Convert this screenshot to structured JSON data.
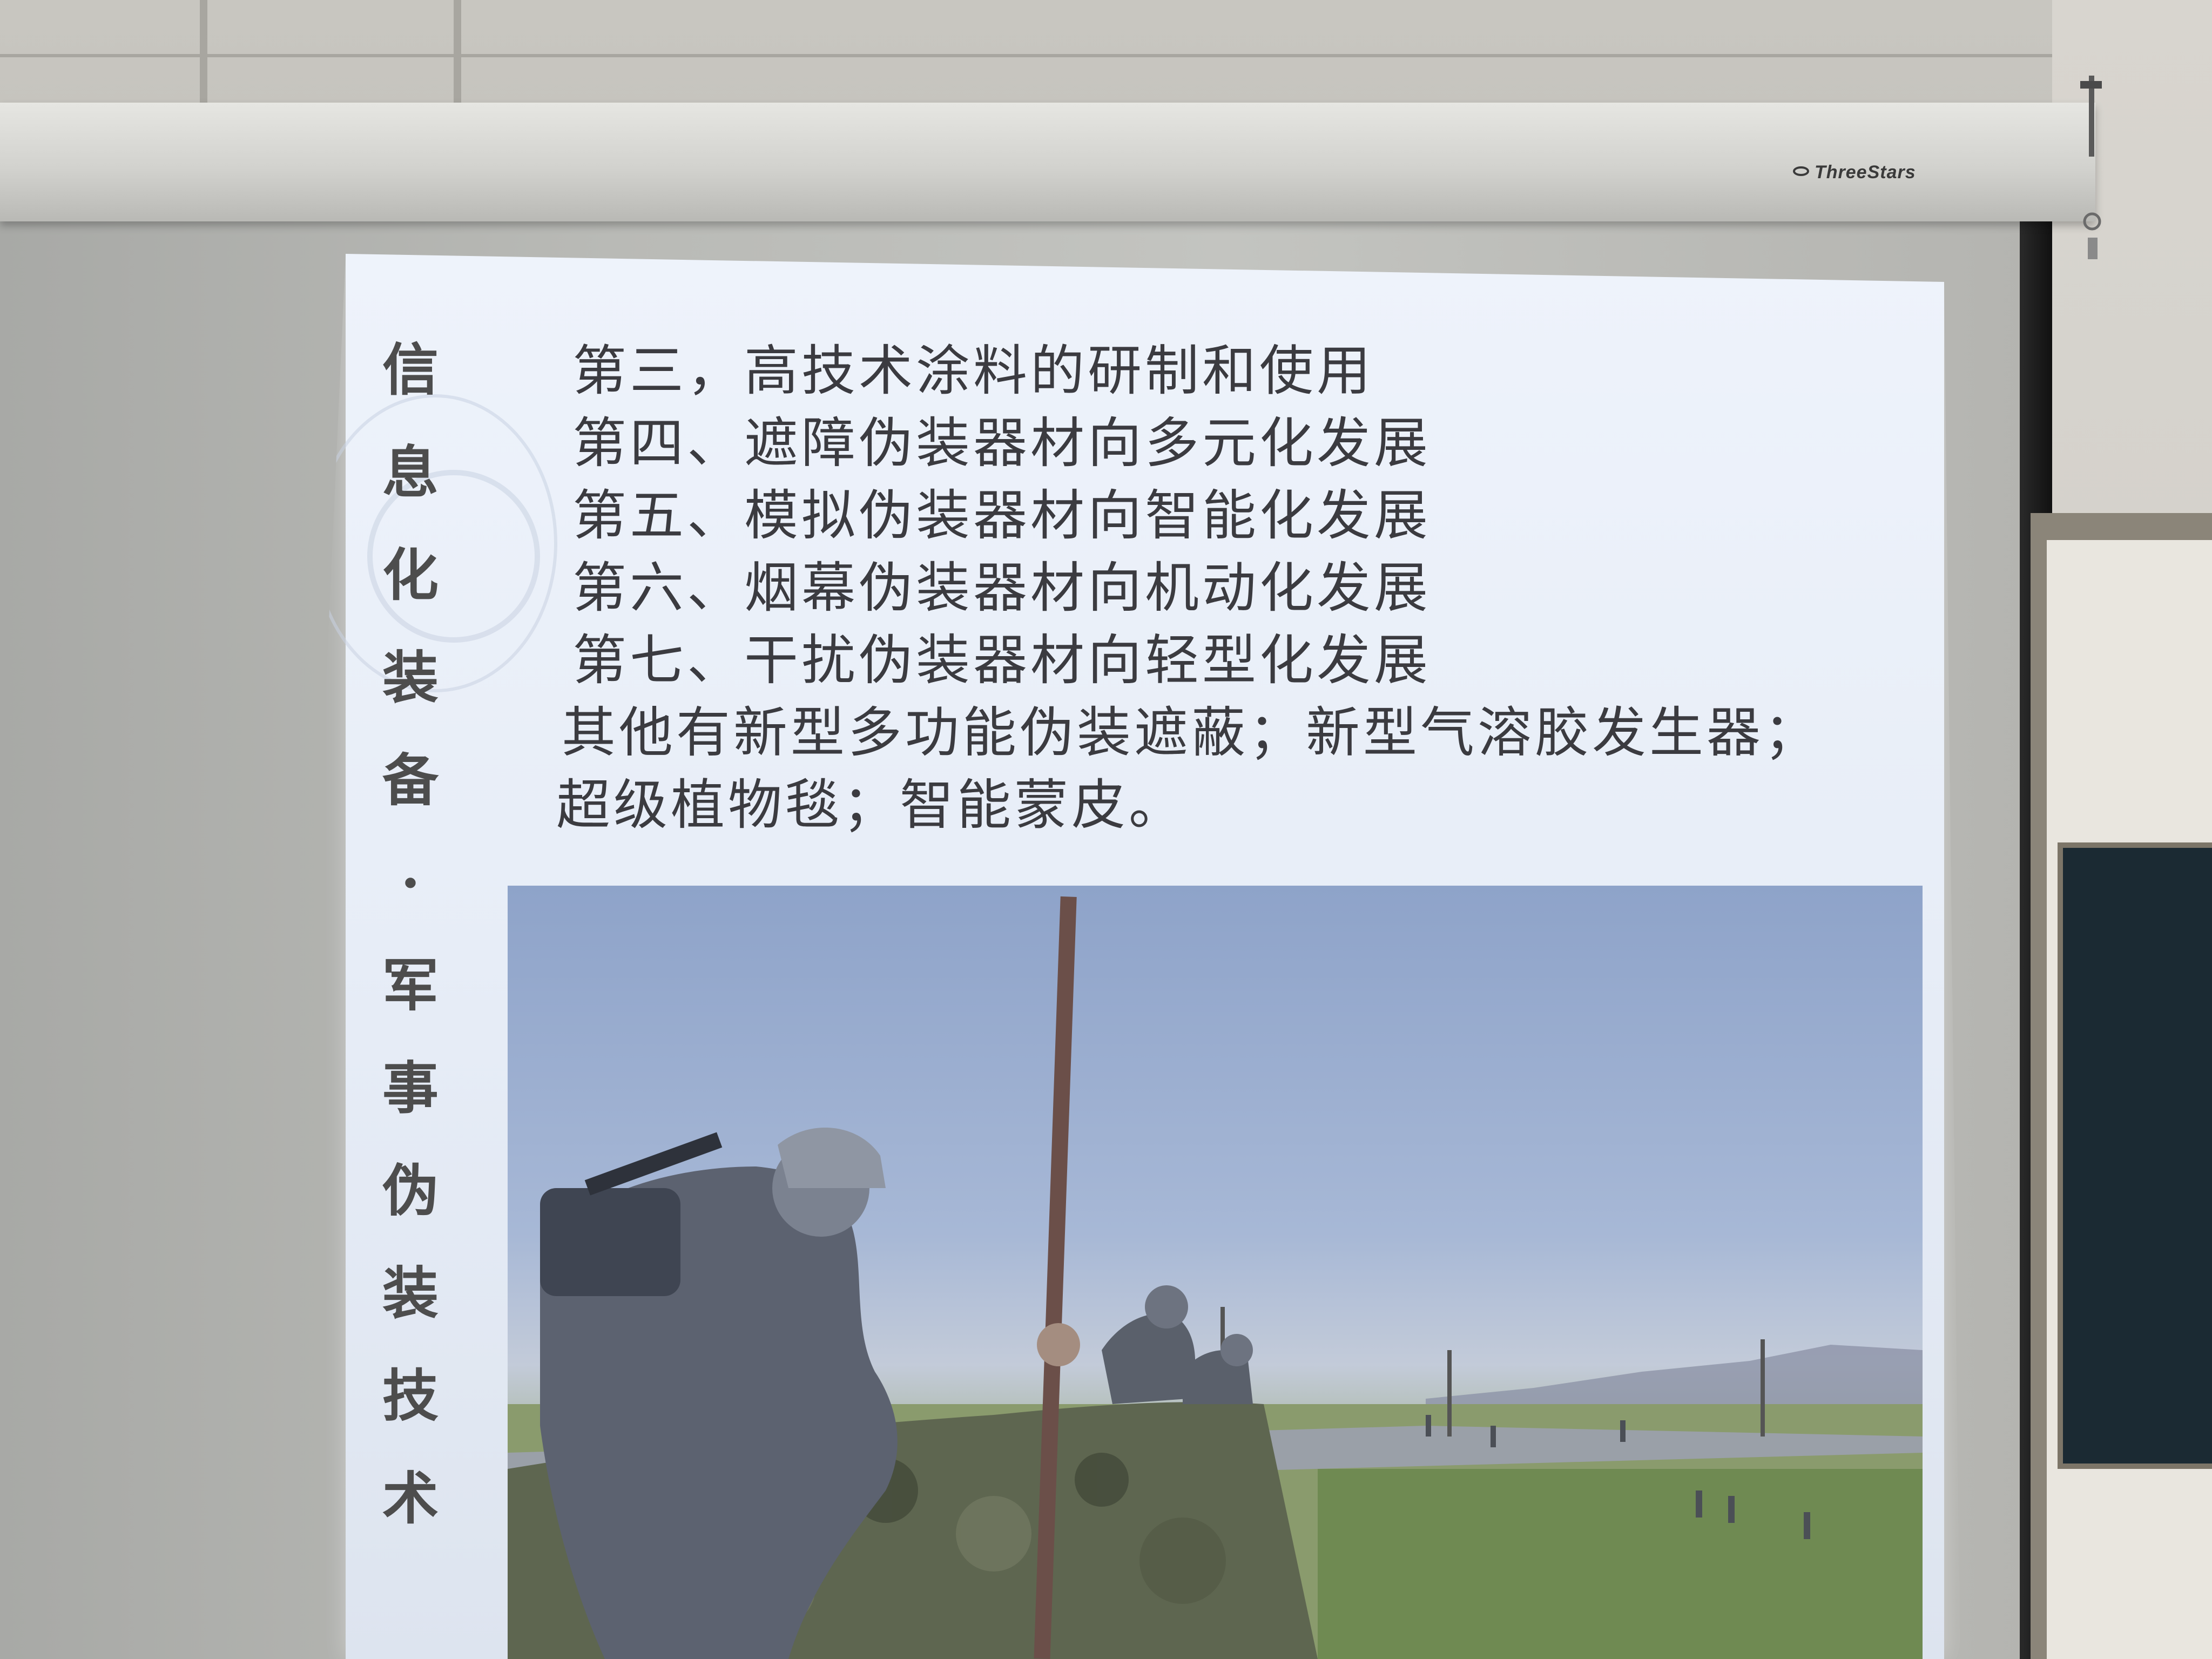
{
  "projector_screen": {
    "brand": "ThreeStars"
  },
  "slide": {
    "vertical_title": [
      "信",
      "息",
      "化",
      "装",
      "备",
      "·",
      "军",
      "事",
      "伪",
      "装",
      "技",
      "术"
    ],
    "lines": [
      "第三，高技术涂料的研制和使用",
      "第四、遮障伪装器材向多元化发展",
      "第五、模拟伪装器材向智能化发展",
      "第六、烟幕伪装器材向机动化发展",
      "第七、干扰伪装器材向轻型化发展",
      "其他有新型多功能伪装遮蔽；新型气溶胶发生器；",
      "超级植物毯；智能蒙皮。"
    ]
  },
  "photo": {
    "subject": "soldiers-erecting-camouflage-net"
  }
}
